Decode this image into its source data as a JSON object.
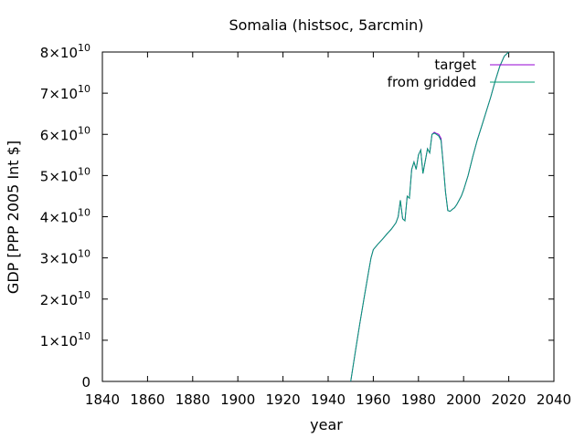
{
  "chart_data": {
    "type": "line",
    "title": "Somalia (histsoc, 5arcmin)",
    "xlabel": "year",
    "ylabel": "GDP [PPP 2005 Int $]",
    "xlim": [
      1840,
      2040
    ],
    "ylim": [
      0,
      80000000000
    ],
    "x_ticks": [
      "1840",
      "1860",
      "1880",
      "1900",
      "1920",
      "1940",
      "1960",
      "1980",
      "2000",
      "2020",
      "2040"
    ],
    "y_ticks": [
      {
        "value": 0,
        "mantissa": "0",
        "exp": ""
      },
      {
        "value": 10000000000,
        "mantissa": "1×10",
        "exp": "10"
      },
      {
        "value": 20000000000,
        "mantissa": "2×10",
        "exp": "10"
      },
      {
        "value": 30000000000,
        "mantissa": "3×10",
        "exp": "10"
      },
      {
        "value": 40000000000,
        "mantissa": "4×10",
        "exp": "10"
      },
      {
        "value": 50000000000,
        "mantissa": "5×10",
        "exp": "10"
      },
      {
        "value": 60000000000,
        "mantissa": "6×10",
        "exp": "10"
      },
      {
        "value": 70000000000,
        "mantissa": "7×10",
        "exp": "10"
      },
      {
        "value": 80000000000,
        "mantissa": "8×10",
        "exp": "10"
      }
    ],
    "grid": false,
    "legend_position": "top-right",
    "series": [
      {
        "name": "target",
        "color": "#9400d3",
        "x": [
          1950,
          1952,
          1954,
          1956,
          1958,
          1959,
          1960,
          1962,
          1964,
          1966,
          1968,
          1970,
          1971,
          1972,
          1973,
          1974,
          1975,
          1976,
          1977,
          1978,
          1979,
          1980,
          1981,
          1982,
          1983,
          1984,
          1985,
          1986,
          1987,
          1988,
          1989,
          1990,
          1991,
          1992,
          1993,
          1994,
          1995,
          1996,
          1997,
          1998,
          1999,
          2000,
          2002,
          2004,
          2006,
          2008,
          2010,
          2012,
          2014,
          2016,
          2018,
          2019,
          2020
        ],
        "y": [
          0,
          7000000000,
          14000000000,
          20500000000,
          27000000000,
          30000000000,
          32000000000,
          33300000000,
          34500000000,
          35800000000,
          37000000000,
          38500000000,
          40000000000,
          44000000000,
          39500000000,
          39000000000,
          45000000000,
          44500000000,
          51500000000,
          53300000000,
          51500000000,
          55000000000,
          56200000000,
          50500000000,
          53500000000,
          56500000000,
          55500000000,
          60000000000,
          60500000000,
          60200000000,
          60000000000,
          59000000000,
          52500000000,
          46000000000,
          41500000000,
          41300000000,
          41800000000,
          42200000000,
          43000000000,
          44000000000,
          45000000000,
          46500000000,
          50000000000,
          54500000000,
          58500000000,
          62000000000,
          65500000000,
          69000000000,
          73000000000,
          76500000000,
          79000000000,
          79500000000,
          80000000000
        ]
      },
      {
        "name": "from gridded",
        "color": "#009e73",
        "x": [
          1950,
          1952,
          1954,
          1956,
          1958,
          1959,
          1960,
          1962,
          1964,
          1966,
          1968,
          1970,
          1971,
          1972,
          1973,
          1974,
          1975,
          1976,
          1977,
          1978,
          1979,
          1980,
          1981,
          1982,
          1983,
          1984,
          1985,
          1986,
          1987,
          1988,
          1989,
          1990,
          1991,
          1992,
          1993,
          1994,
          1995,
          1996,
          1997,
          1998,
          1999,
          2000,
          2002,
          2004,
          2006,
          2008,
          2010,
          2012,
          2014,
          2016,
          2018,
          2019,
          2020
        ],
        "y": [
          0,
          7000000000,
          14000000000,
          20500000000,
          27000000000,
          30000000000,
          32000000000,
          33300000000,
          34500000000,
          35800000000,
          37000000000,
          38500000000,
          40000000000,
          44000000000,
          39500000000,
          39000000000,
          45000000000,
          44500000000,
          51500000000,
          53300000000,
          51500000000,
          55000000000,
          56200000000,
          50500000000,
          53500000000,
          56500000000,
          55500000000,
          60000000000,
          60300000000,
          60000000000,
          59600000000,
          58500000000,
          52500000000,
          46000000000,
          41500000000,
          41300000000,
          41800000000,
          42200000000,
          43000000000,
          44000000000,
          45000000000,
          46500000000,
          50000000000,
          54500000000,
          58500000000,
          62000000000,
          65500000000,
          69000000000,
          73000000000,
          76500000000,
          79000000000,
          79500000000,
          80000000000
        ]
      }
    ]
  }
}
